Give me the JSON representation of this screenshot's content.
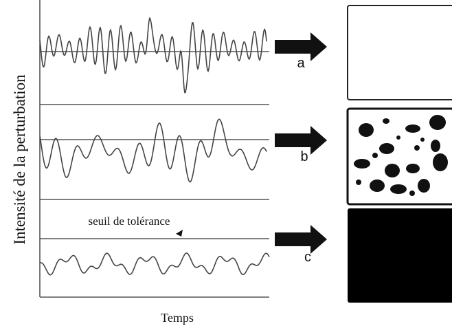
{
  "axes": {
    "y_label": "Intensité de la perturbation",
    "x_label": "Temps"
  },
  "threshold_label": "seuil de tolérance",
  "panels": [
    {
      "label": "a"
    },
    {
      "label": "b"
    },
    {
      "label": "c"
    }
  ]
}
